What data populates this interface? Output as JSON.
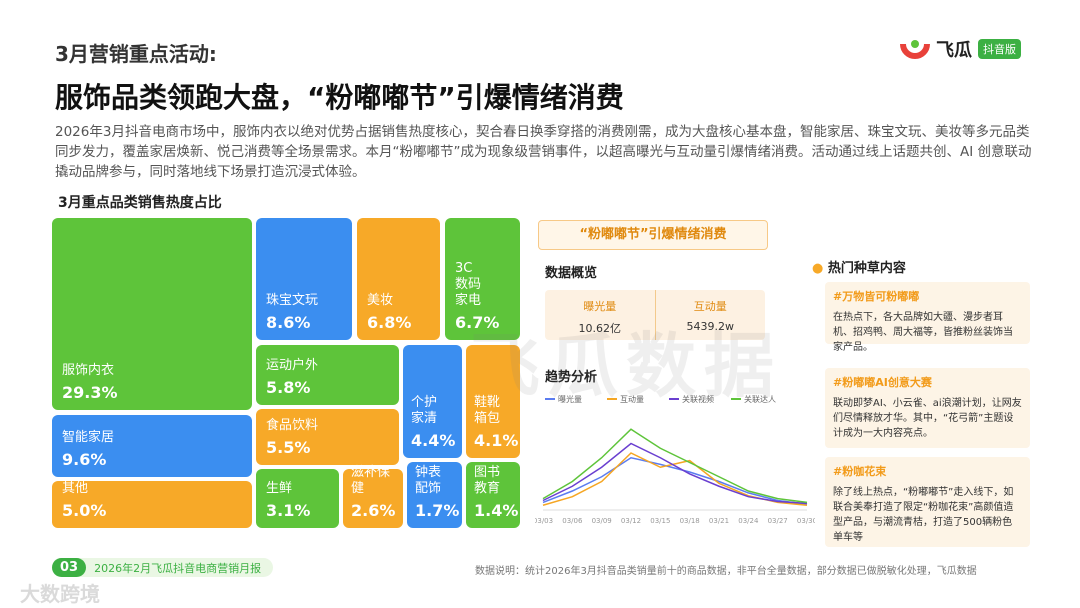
{
  "header": {
    "kicker": "3月营销重点活动:",
    "title": "服饰品类领跑大盘，“粉嘟嘟节”引爆情绪消费",
    "logo": "飞瓜",
    "badge": "抖音版"
  },
  "intro": "2026年3月抖音电商市场中，服饰内衣以绝对优势占据销售热度核心，契合春日换季穿搭的消费刚需，成为大盘核心基本盘，智能家居、珠宝文玩、美妆等多元品类同步发力，覆盖家居焕新、悦己消费等全场景需求。本月“粉嘟嘟节”成为现象级营销事件，以超高曝光与互动量引爆情绪消费。活动通过线上话题共创、AI 创意联动撬动品牌参与，同时落地线下场景打造沉浸式体验。",
  "treemap": {
    "title": "3月重点品类销售热度占比",
    "tiles": [
      {
        "name": "服饰内衣",
        "share": "29.3%"
      },
      {
        "name": "智能家居",
        "share": "9.6%"
      },
      {
        "name": "其他",
        "share": "5.0%"
      },
      {
        "name": "珠宝文玩",
        "share": "8.6%"
      },
      {
        "name": "美妆",
        "share": "6.8%"
      },
      {
        "name": "3C数码家电",
        "share": "6.7%"
      },
      {
        "name": "运动户外",
        "share": "5.8%"
      },
      {
        "name": "食品饮料",
        "share": "5.5%"
      },
      {
        "name": "生鲜",
        "share": "3.1%"
      },
      {
        "name": "滋补保健",
        "share": "2.6%"
      },
      {
        "name": "个护家清",
        "share": "4.4%"
      },
      {
        "name": "鞋靴箱包",
        "share": "4.1%"
      },
      {
        "name": "钟表配饰",
        "share": "1.7%"
      },
      {
        "name": "图书教育",
        "share": "1.4%"
      }
    ]
  },
  "event": {
    "tag": "“粉嘟嘟节”引爆情绪消费",
    "overview_title": "数据概览",
    "metrics": [
      {
        "label": "曝光量",
        "value": "10.62亿"
      },
      {
        "label": "互动量",
        "value": "5439.2w"
      }
    ],
    "trend_title": "趋势分析",
    "hot_title": "热门种草内容",
    "cards": [
      {
        "tag": "#万物皆可粉嘟嘟",
        "text": "在热点下，各大品牌如大疆、漫步者耳机、招鸡鸭、周大福等，皆推粉丝装饰当家产品。"
      },
      {
        "tag": "#粉嘟嘟AI创意大赛",
        "text": "联动即梦AI、小云雀、ai浪潮计划，让网友们尽情释放才华。其中，“花弓箭”主题设计成为一大内容亮点。"
      },
      {
        "tag": "#粉咖花束",
        "text": "除了线上热点，“粉嘟嘟节”走入线下，如联合美奉打造了限定“粉咖花束”高颜值造型产品，与潮流青桔，打造了500辆粉色单车等"
      }
    ]
  },
  "chart_data": {
    "type": "line",
    "x": [
      "03/03",
      "03/06",
      "03/09",
      "03/12",
      "03/15",
      "03/18",
      "03/21",
      "03/24",
      "03/27",
      "03/30"
    ],
    "ylim": [
      0,
      100
    ],
    "series": [
      {
        "name": "曝光量",
        "color": "#5b7cf0",
        "values": [
          8,
          20,
          35,
          55,
          48,
          40,
          30,
          18,
          10,
          6
        ]
      },
      {
        "name": "互动量",
        "color": "#f5a623",
        "values": [
          5,
          14,
          30,
          60,
          45,
          52,
          28,
          15,
          8,
          5
        ]
      },
      {
        "name": "关联视频",
        "color": "#6a3fd0",
        "values": [
          10,
          25,
          45,
          70,
          55,
          38,
          25,
          14,
          9,
          7
        ]
      },
      {
        "name": "关联达人",
        "color": "#5ec43a",
        "values": [
          12,
          30,
          55,
          85,
          65,
          50,
          35,
          20,
          12,
          8
        ]
      }
    ]
  },
  "footer": {
    "page": "03",
    "report": "2026年2月飞瓜抖音电商营销月报",
    "note": "数据说明：统计2026年3月抖音品类销量前十的商品数据，非平台全量数据，部分数据已做脱敏化处理，飞瓜数据"
  },
  "watermark": {
    "main": "飞瓜数据",
    "corner": "大数跨境"
  }
}
